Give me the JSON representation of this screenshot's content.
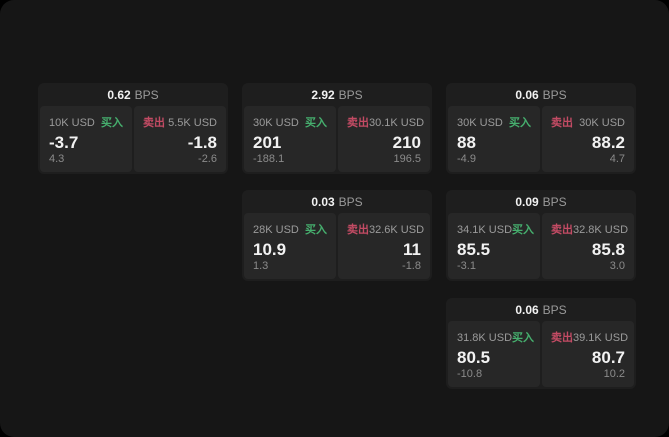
{
  "labels": {
    "bps_unit": "BPS",
    "buy": "买入",
    "sell": "卖出"
  },
  "colors": {
    "buy": "#46af6e",
    "sell": "#c34b64",
    "page_bg": "#161616",
    "card_bg": "#1e1e1e",
    "panel_bg": "#272727"
  },
  "cards": [
    {
      "bps": "0.62",
      "buy": {
        "amount": "10K USD",
        "price": "-3.7",
        "delta": "4.3"
      },
      "sell": {
        "amount": "5.5K USD",
        "price": "-1.8",
        "delta": "-2.6"
      }
    },
    {
      "bps": "2.92",
      "buy": {
        "amount": "30K USD",
        "price": "201",
        "delta": "-188.1"
      },
      "sell": {
        "amount": "30.1K USD",
        "price": "210",
        "delta": "196.5"
      }
    },
    {
      "bps": "0.06",
      "buy": {
        "amount": "30K USD",
        "price": "88",
        "delta": "-4.9"
      },
      "sell": {
        "amount": "30K USD",
        "price": "88.2",
        "delta": "4.7"
      }
    },
    {
      "bps": "0.03",
      "buy": {
        "amount": "28K USD",
        "price": "10.9",
        "delta": "1.3"
      },
      "sell": {
        "amount": "32.6K USD",
        "price": "11",
        "delta": "-1.8"
      }
    },
    {
      "bps": "0.09",
      "buy": {
        "amount": "34.1K USD",
        "price": "85.5",
        "delta": "-3.1"
      },
      "sell": {
        "amount": "32.8K USD",
        "price": "85.8",
        "delta": "3.0"
      }
    },
    {
      "bps": "0.06",
      "buy": {
        "amount": "31.8K USD",
        "price": "80.5",
        "delta": "-10.8"
      },
      "sell": {
        "amount": "39.1K USD",
        "price": "80.7",
        "delta": "10.2"
      }
    }
  ]
}
